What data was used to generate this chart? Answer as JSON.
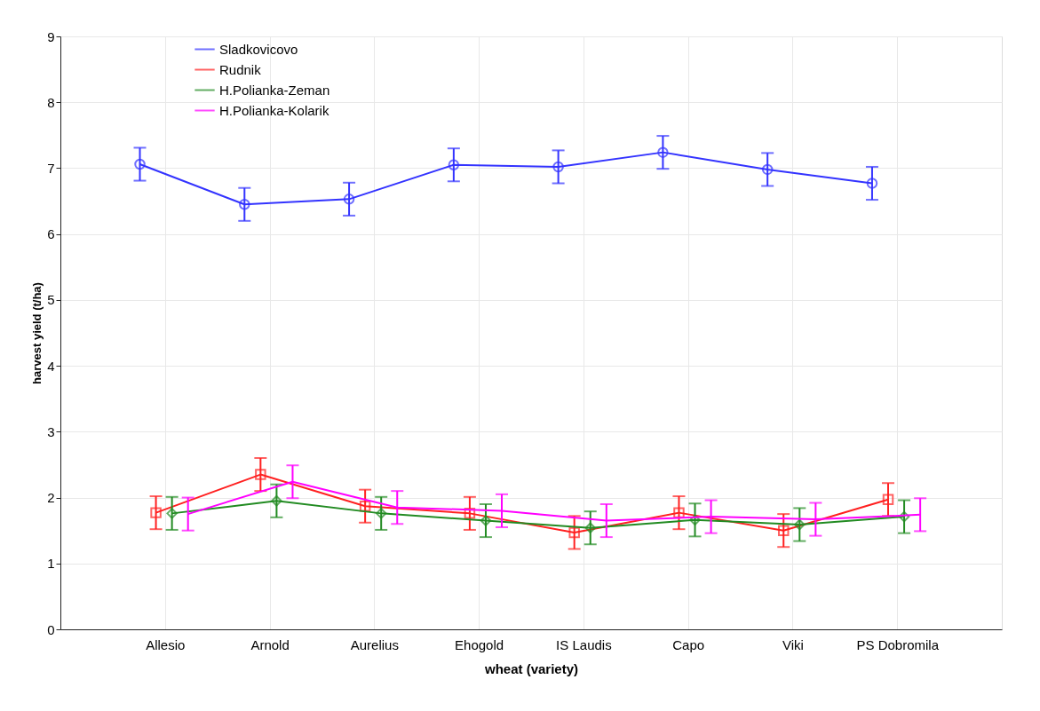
{
  "chart_data": {
    "type": "line",
    "xlabel": "wheat (variety)",
    "ylabel": "harvest yield (t/ha)",
    "categories": [
      "Allesio",
      "Arnold",
      "Aurelius",
      "Ehogold",
      "IS Laudis",
      "Capo",
      "Viki",
      "PS Dobromila"
    ],
    "ylim": [
      0,
      9
    ],
    "yticks": [
      0,
      1,
      2,
      3,
      4,
      5,
      6,
      7,
      8,
      9
    ],
    "grid": true,
    "legend": "top left",
    "series": [
      {
        "name": "Sladkovicovo",
        "color": "#3333ff",
        "marker": "circle",
        "values": [
          7.06,
          6.45,
          6.53,
          7.05,
          7.02,
          7.24,
          6.98,
          6.77
        ],
        "errors": [
          0.25,
          0.25,
          0.25,
          0.25,
          0.25,
          0.25,
          0.25,
          0.25
        ]
      },
      {
        "name": "Rudnik",
        "color": "#ff2020",
        "marker": "square",
        "values": [
          1.77,
          2.35,
          1.87,
          1.76,
          1.47,
          1.77,
          1.5,
          1.97
        ],
        "errors": [
          0.25,
          0.25,
          0.25,
          0.25,
          0.25,
          0.25,
          0.25,
          0.25
        ]
      },
      {
        "name": "H.Polianka-Zeman",
        "color": "#228b22",
        "marker": "diamond",
        "values": [
          1.76,
          1.95,
          1.76,
          1.65,
          1.54,
          1.66,
          1.59,
          1.71
        ],
        "errors": [
          0.25,
          0.25,
          0.25,
          0.25,
          0.25,
          0.25,
          0.25,
          0.25
        ]
      },
      {
        "name": "H.Polianka-Kolarik",
        "color": "#ff00ff",
        "marker": "none",
        "values": [
          1.75,
          2.24,
          1.85,
          1.8,
          1.65,
          1.71,
          1.67,
          1.74
        ],
        "errors": [
          0.25,
          0.25,
          0.25,
          0.25,
          0.25,
          0.25,
          0.25,
          0.25
        ]
      }
    ]
  }
}
